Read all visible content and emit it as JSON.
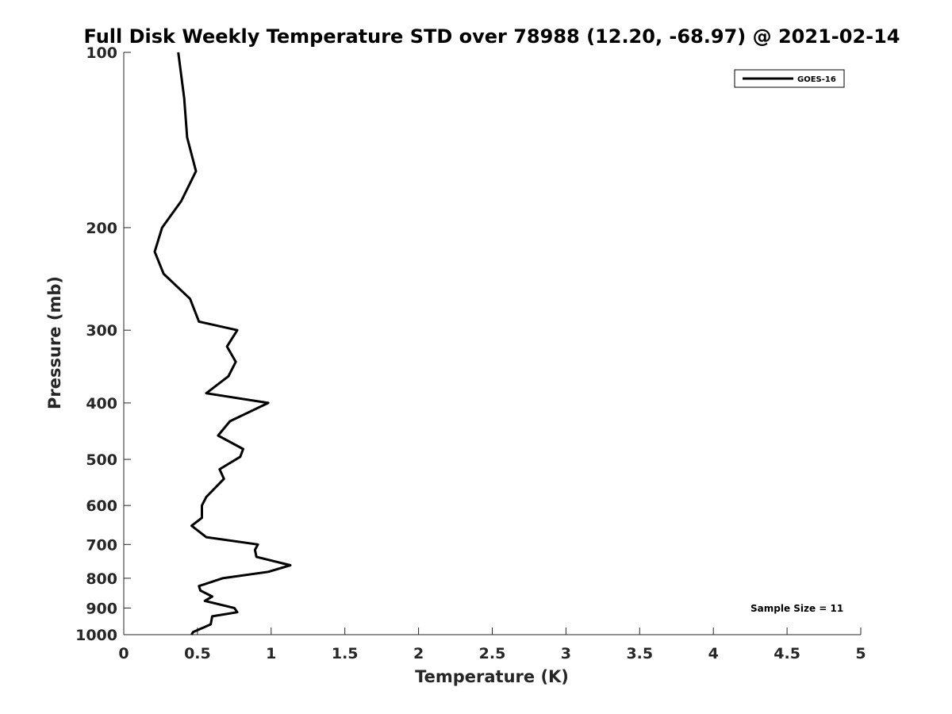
{
  "chart_data": {
    "type": "line",
    "title": "Full Disk Weekly Temperature STD over 78988 (12.20, -68.97) @ 2021-02-14",
    "xlabel": "Temperature (K)",
    "ylabel": "Pressure (mb)",
    "xlim": [
      0,
      5
    ],
    "ylim": [
      100,
      1000
    ],
    "yscale": "log",
    "y_reversed": true,
    "xticks": [
      "0",
      "0.5",
      "1",
      "1.5",
      "2",
      "2.5",
      "3",
      "3.5",
      "4",
      "4.5",
      "5"
    ],
    "yticks": [
      "100",
      "200",
      "300",
      "400",
      "500",
      "600",
      "700",
      "800",
      "900",
      "1000"
    ],
    "grid": false,
    "legend_position": "top-right",
    "series": [
      {
        "name": "GOES-16",
        "color": "#000000",
        "x": [
          0.37,
          0.41,
          0.43,
          0.49,
          0.39,
          0.26,
          0.21,
          0.27,
          0.45,
          0.51,
          0.77,
          0.7,
          0.76,
          0.71,
          0.56,
          0.98,
          0.72,
          0.64,
          0.81,
          0.79,
          0.65,
          0.68,
          0.56,
          0.53,
          0.53,
          0.46,
          0.56,
          0.91,
          0.89,
          0.9,
          1.13,
          0.98,
          0.67,
          0.51,
          0.52,
          0.6,
          0.55,
          0.75,
          0.77,
          0.6,
          0.59,
          0.47,
          0.46
        ],
        "y": [
          100,
          120,
          140,
          160,
          180,
          200,
          220,
          240,
          265,
          290,
          300,
          320,
          340,
          360,
          385,
          400,
          430,
          455,
          480,
          495,
          520,
          540,
          580,
          600,
          630,
          650,
          680,
          700,
          715,
          735,
          760,
          780,
          800,
          825,
          840,
          860,
          875,
          900,
          915,
          930,
          960,
          990,
          1000
        ]
      }
    ],
    "annotation": "Sample Size = 11"
  }
}
